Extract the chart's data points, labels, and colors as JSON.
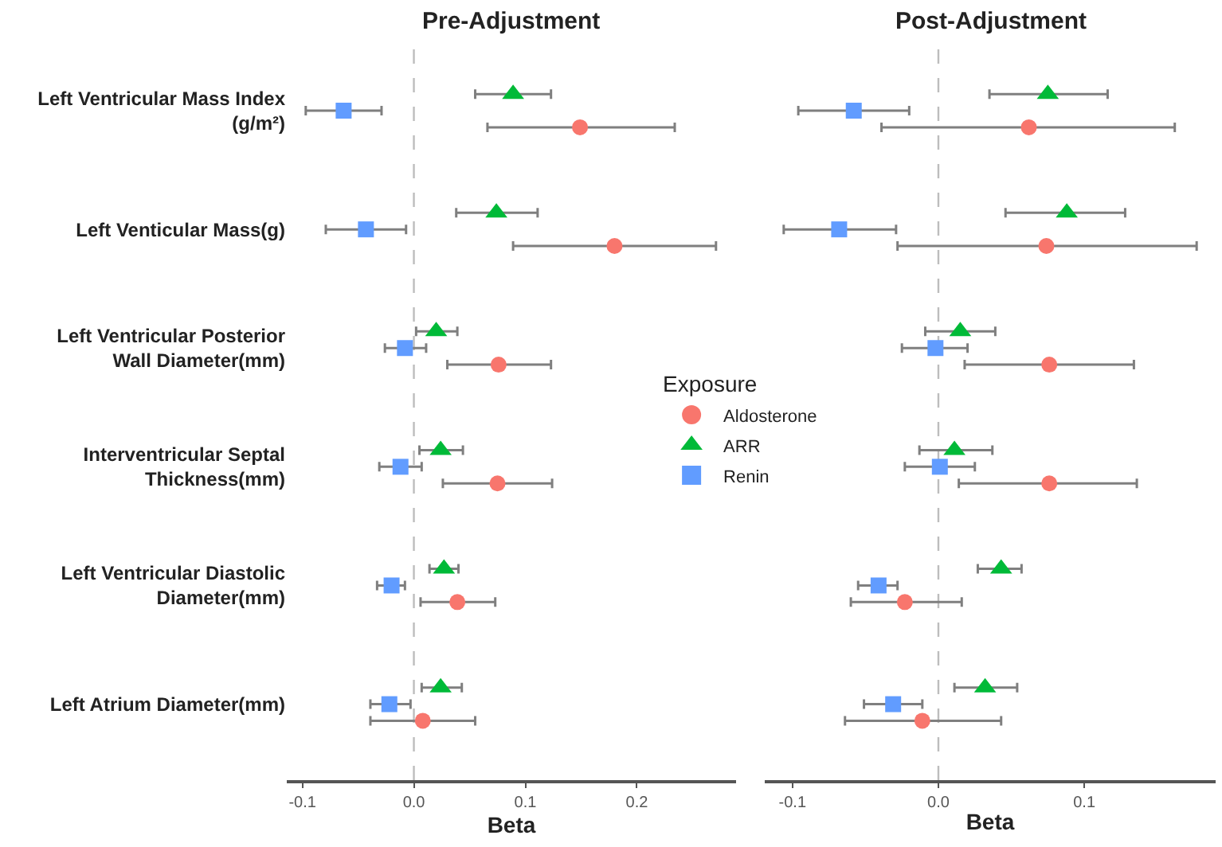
{
  "chart_data": [
    {
      "type": "scatter",
      "orientation": "horizontal",
      "title": "Pre-Adjustment",
      "xlabel": "Beta",
      "legend_title": "Exposure",
      "legend": "right",
      "grid": false,
      "categories": [
        "Left Ventricular Mass Index (g/m²)",
        "Left Venticular Mass(g)",
        "Left Ventricular Posterior Wall Diameter(mm)",
        "Interventricular Septal Thickness(mm)",
        "Left Ventricular Diastolic Diameter(mm)",
        "Left Atrium Diameter(mm)"
      ],
      "xlim": [
        -0.114,
        0.289
      ],
      "xticks": [
        {
          "value": -0.1,
          "label": "-0.1"
        },
        {
          "value": 0,
          "label": "0.0"
        },
        {
          "value": 0.1,
          "label": "0.1"
        },
        {
          "value": 0.2,
          "label": "0.2"
        }
      ],
      "ref_lines": [
        {
          "axis": "x",
          "value": 0,
          "color": "#bdbdbd",
          "line_style": "dashed"
        }
      ],
      "series": [
        {
          "name": "Aldosterone",
          "color": "#f8766d",
          "marker": "circle",
          "values": [
            0.149,
            0.18,
            0.076,
            0.075,
            0.039,
            0.008
          ],
          "errors": [
            [
              0.066,
              0.234
            ],
            [
              0.089,
              0.271
            ],
            [
              0.03,
              0.123
            ],
            [
              0.026,
              0.124
            ],
            [
              0.006,
              0.073
            ],
            [
              -0.039,
              0.055
            ]
          ]
        },
        {
          "name": "ARR",
          "color": "#00ba38",
          "marker": "triangle",
          "values": [
            0.089,
            0.074,
            0.02,
            0.024,
            0.027,
            0.024
          ],
          "errors": [
            [
              0.055,
              0.123
            ],
            [
              0.038,
              0.111
            ],
            [
              0.002,
              0.039
            ],
            [
              0.005,
              0.044
            ],
            [
              0.014,
              0.04
            ],
            [
              0.007,
              0.043
            ]
          ]
        },
        {
          "name": "Renin",
          "color": "#619cff",
          "marker": "square",
          "values": [
            -0.063,
            -0.043,
            -0.008,
            -0.012,
            -0.02,
            -0.022
          ],
          "errors": [
            [
              -0.097,
              -0.029
            ],
            [
              -0.079,
              -0.007
            ],
            [
              -0.026,
              0.011
            ],
            [
              -0.031,
              0.007
            ],
            [
              -0.033,
              -0.008
            ],
            [
              -0.039,
              -0.003
            ]
          ]
        }
      ]
    },
    {
      "type": "scatter",
      "orientation": "horizontal",
      "title": "Post-Adjustment",
      "xlabel": "Beta",
      "grid": false,
      "tick_labels": "x",
      "categories": [
        null,
        null,
        null,
        null,
        null,
        null
      ],
      "xlim": [
        -0.119,
        0.19
      ],
      "xticks": [
        {
          "value": -0.1,
          "label": "-0.1"
        },
        {
          "value": 0,
          "label": "0.0"
        },
        {
          "value": 0.1,
          "label": "0.1"
        }
      ],
      "ref_lines": [
        {
          "axis": "x",
          "value": 0,
          "color": "#bdbdbd",
          "line_style": "dashed"
        }
      ],
      "series": [
        {
          "color": "#f8766d",
          "marker": "circle",
          "values": [
            0.062,
            0.074,
            0.076,
            0.076,
            -0.023,
            -0.011
          ],
          "errors": [
            [
              -0.039,
              0.162
            ],
            [
              -0.028,
              0.177
            ],
            [
              0.018,
              0.134
            ],
            [
              0.014,
              0.136
            ],
            [
              -0.06,
              0.016
            ],
            [
              -0.064,
              0.043
            ]
          ]
        },
        {
          "color": "#00ba38",
          "marker": "triangle",
          "values": [
            0.075,
            0.088,
            0.015,
            0.011,
            0.043,
            0.032
          ],
          "errors": [
            [
              0.035,
              0.116
            ],
            [
              0.046,
              0.128
            ],
            [
              -0.009,
              0.039
            ],
            [
              -0.013,
              0.037
            ],
            [
              0.027,
              0.057
            ],
            [
              0.011,
              0.054
            ]
          ]
        },
        {
          "color": "#619cff",
          "marker": "square",
          "values": [
            -0.058,
            -0.068,
            -0.002,
            0.001,
            -0.041,
            -0.031
          ],
          "errors": [
            [
              -0.096,
              -0.02
            ],
            [
              -0.106,
              -0.029
            ],
            [
              -0.025,
              0.02
            ],
            [
              -0.023,
              0.025
            ],
            [
              -0.055,
              -0.028
            ],
            [
              -0.051,
              -0.011
            ]
          ]
        }
      ]
    }
  ]
}
